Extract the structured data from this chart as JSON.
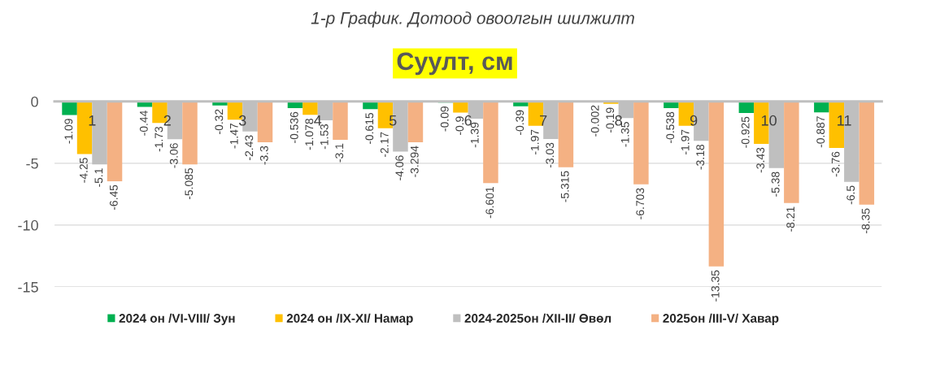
{
  "chart_data": {
    "type": "bar",
    "title": "1-р График. Дотоод овоолгын шилжилт",
    "subtitle": "Суулт, см",
    "categories": [
      "1",
      "2",
      "3",
      "4",
      "5",
      "6",
      "7",
      "8",
      "9",
      "10",
      "11"
    ],
    "series": [
      {
        "name": "2024 он /VI-VIII/ Зун",
        "color": "#00b050",
        "values": [
          -1.09,
          -0.44,
          -0.32,
          -0.536,
          -0.615,
          -0.09,
          -0.39,
          -0.002,
          -0.538,
          -0.925,
          -0.887
        ]
      },
      {
        "name": "2024 он /IX-XI/ Намар",
        "color": "#ffc000",
        "values": [
          -4.25,
          -1.73,
          -1.47,
          -1.078,
          -2.17,
          -0.9,
          -1.97,
          -0.19,
          -1.97,
          -3.43,
          -3.76
        ]
      },
      {
        "name": "2024-2025он /XII-II/ Өвөл",
        "color": "#bfbfbf",
        "values": [
          -5.1,
          -3.06,
          -2.43,
          -1.53,
          -4.06,
          -1.39,
          -3.03,
          -1.35,
          -3.18,
          -5.38,
          -6.5
        ]
      },
      {
        "name": "2025он /III-V/ Хавар",
        "color": "#f4b183",
        "values": [
          -6.45,
          -5.085,
          -3.3,
          -3.1,
          -3.294,
          -6.601,
          -5.315,
          -6.703,
          -13.35,
          -8.21,
          -8.35
        ]
      }
    ],
    "ylim": [
      -15,
      0
    ],
    "yticks": [
      0,
      -5,
      -10,
      -15
    ],
    "grid": "y",
    "legend": "bottom",
    "data_labels": true
  }
}
